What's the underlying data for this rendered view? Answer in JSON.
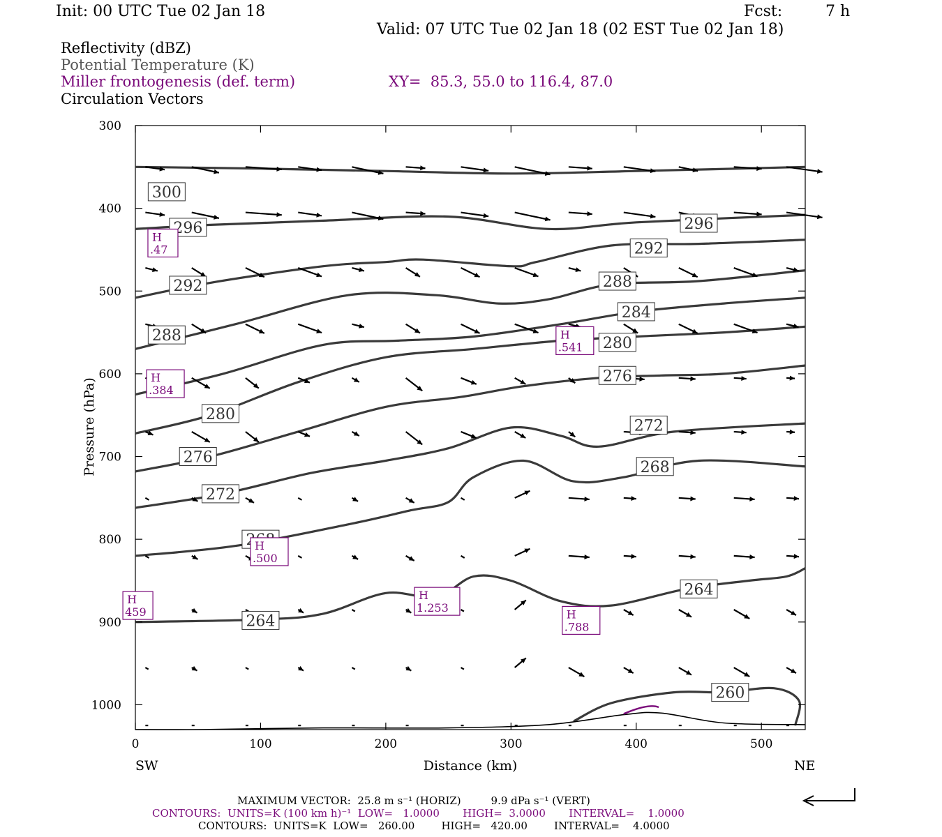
{
  "header": {
    "init": "Init: 00 UTC Tue 02 Jan 18",
    "fcst_label": "Fcst:",
    "fcst_value": "7 h",
    "valid": "Valid: 07 UTC Tue 02 Jan 18 (02 EST Tue 02 Jan 18)",
    "field1": "Reflectivity (dBZ)",
    "field2": "Potential Temperature (K)",
    "field3": "Miller frontogenesis (def. term)",
    "xy": "XY=  85.3, 55.0 to 116.4, 87.0",
    "field4": "Circulation Vectors"
  },
  "footer": {
    "left_end": "SW",
    "right_end": "NE",
    "maxvec": "MAXIMUM VECTOR:  25.8 m s⁻¹ (HORIZ)         9.9 dPa s⁻¹ (VERT)",
    "contours1": "CONTOURS:  UNITS=K (100 km h)⁻¹  LOW=   1.0000       HIGH=  3.0000       INTERVAL=    1.0000",
    "contours2": "CONTOURS:  UNITS=K  LOW=   260.00        HIGH=   420.00        INTERVAL=    4.0000"
  },
  "colors": {
    "theta": "#3a3a3a",
    "frontogenesis": "#7a0a7a",
    "vectors": "#000000"
  },
  "chart_data": {
    "type": "line",
    "xlabel": "Distance (km)",
    "ylabel": "Pressure (hPa)",
    "xlim": [
      0,
      535
    ],
    "ylim": [
      1030,
      300
    ],
    "xticks": [
      0,
      100,
      200,
      300,
      400,
      500
    ],
    "yticks": [
      300,
      400,
      500,
      600,
      700,
      800,
      900,
      1000
    ],
    "grid": false,
    "theta_contours": [
      {
        "name": "300",
        "values": [
          [
            0,
            350
          ],
          [
            100,
            352
          ],
          [
            200,
            355
          ],
          [
            300,
            358
          ],
          [
            400,
            355
          ],
          [
            535,
            350
          ]
        ],
        "labels": [
          [
            25,
            380
          ]
        ]
      },
      {
        "name": "296",
        "values": [
          [
            0,
            425
          ],
          [
            60,
            420
          ],
          [
            150,
            415
          ],
          [
            250,
            410
          ],
          [
            330,
            425
          ],
          [
            400,
            417
          ],
          [
            535,
            408
          ]
        ],
        "labels": [
          [
            42,
            423
          ],
          [
            450,
            418
          ]
        ]
      },
      {
        "name": "292",
        "values": [
          [
            0,
            508
          ],
          [
            60,
            490
          ],
          [
            150,
            470
          ],
          [
            200,
            465
          ],
          [
            230,
            462
          ],
          [
            300,
            470
          ],
          [
            320,
            465
          ],
          [
            380,
            445
          ],
          [
            450,
            443
          ],
          [
            535,
            438
          ]
        ],
        "labels": [
          [
            42,
            493
          ],
          [
            410,
            448
          ]
        ]
      },
      {
        "name": "288",
        "values": [
          [
            0,
            570
          ],
          [
            80,
            540
          ],
          [
            170,
            505
          ],
          [
            240,
            505
          ],
          [
            290,
            515
          ],
          [
            330,
            510
          ],
          [
            380,
            492
          ],
          [
            450,
            488
          ],
          [
            535,
            475
          ]
        ],
        "labels": [
          [
            25,
            553
          ],
          [
            385,
            488
          ]
        ]
      },
      {
        "name": "284",
        "values": [
          [
            0,
            625
          ],
          [
            70,
            600
          ],
          [
            150,
            565
          ],
          [
            210,
            560
          ],
          [
            270,
            555
          ],
          [
            340,
            540
          ],
          [
            400,
            525
          ],
          [
            470,
            515
          ],
          [
            535,
            508
          ]
        ],
        "labels": [
          [
            400,
            525
          ]
        ]
      },
      {
        "name": "280",
        "values": [
          [
            0,
            672
          ],
          [
            60,
            650
          ],
          [
            130,
            610
          ],
          [
            200,
            580
          ],
          [
            270,
            570
          ],
          [
            340,
            560
          ],
          [
            400,
            555
          ],
          [
            470,
            550
          ],
          [
            535,
            543
          ]
        ],
        "labels": [
          [
            68,
            648
          ],
          [
            385,
            562
          ]
        ]
      },
      {
        "name": "276",
        "values": [
          [
            0,
            718
          ],
          [
            60,
            700
          ],
          [
            130,
            670
          ],
          [
            200,
            640
          ],
          [
            260,
            628
          ],
          [
            310,
            615
          ],
          [
            370,
            605
          ],
          [
            420,
            602
          ],
          [
            470,
            600
          ],
          [
            535,
            590
          ]
        ],
        "labels": [
          [
            50,
            700
          ],
          [
            385,
            602
          ]
        ]
      },
      {
        "name": "272",
        "values": [
          [
            0,
            762
          ],
          [
            70,
            745
          ],
          [
            140,
            720
          ],
          [
            200,
            705
          ],
          [
            250,
            690
          ],
          [
            300,
            665
          ],
          [
            340,
            675
          ],
          [
            370,
            688
          ],
          [
            430,
            670
          ],
          [
            535,
            660
          ]
        ],
        "labels": [
          [
            68,
            745
          ],
          [
            410,
            662
          ]
        ]
      },
      {
        "name": "268",
        "values": [
          [
            0,
            820
          ],
          [
            80,
            808
          ],
          [
            170,
            782
          ],
          [
            220,
            765
          ],
          [
            250,
            755
          ],
          [
            270,
            725
          ],
          [
            310,
            705
          ],
          [
            350,
            730
          ],
          [
            390,
            725
          ],
          [
            450,
            705
          ],
          [
            535,
            712
          ]
        ],
        "labels": [
          [
            100,
            800
          ],
          [
            415,
            712
          ]
        ]
      },
      {
        "name": "264",
        "values": [
          [
            0,
            900
          ],
          [
            100,
            897
          ],
          [
            150,
            890
          ],
          [
            200,
            865
          ],
          [
            240,
            870
          ],
          [
            270,
            845
          ],
          [
            300,
            850
          ],
          [
            340,
            875
          ],
          [
            380,
            880
          ],
          [
            440,
            860
          ],
          [
            490,
            850
          ],
          [
            520,
            845
          ],
          [
            535,
            835
          ]
        ],
        "labels": [
          [
            100,
            898
          ],
          [
            450,
            860
          ]
        ]
      },
      {
        "name": "260",
        "values": [
          [
            350,
            1020
          ],
          [
            380,
            998
          ],
          [
            430,
            985
          ],
          [
            470,
            985
          ],
          [
            510,
            980
          ],
          [
            530,
            995
          ],
          [
            527,
            1025
          ]
        ],
        "labels": [
          [
            475,
            985
          ]
        ]
      }
    ],
    "frontogenesis_maxima": [
      {
        "label": "H",
        "value": ".47",
        "x": 22,
        "p": 442
      },
      {
        "label": "H",
        "value": ".541",
        "x": 351,
        "p": 560
      },
      {
        "label": "H",
        "value": ".384",
        "x": 24,
        "p": 612
      },
      {
        "label": "H",
        "value": ".500",
        "x": 107,
        "p": 815
      },
      {
        "label": "H",
        "value": "459",
        "x": 2,
        "p": 880
      },
      {
        "label": "H",
        "value": "1.253",
        "x": 241,
        "p": 875
      },
      {
        "label": "H",
        "value": ".788",
        "x": 356,
        "p": 898
      }
    ],
    "surface_line": [
      [
        0,
        1030
      ],
      [
        50,
        1030
      ],
      [
        150,
        1028
      ],
      [
        250,
        1028
      ],
      [
        330,
        1024
      ],
      [
        390,
        1012
      ],
      [
        420,
        1010
      ],
      [
        470,
        1022
      ],
      [
        535,
        1024
      ]
    ],
    "vectors_meta": {
      "rows_p": [
        350,
        405,
        472,
        540,
        605,
        670,
        750,
        820,
        885,
        955,
        1025
      ],
      "cols_x": [
        8,
        45,
        88,
        130,
        173,
        216,
        260,
        303,
        346,
        390,
        434,
        478,
        520
      ]
    }
  }
}
